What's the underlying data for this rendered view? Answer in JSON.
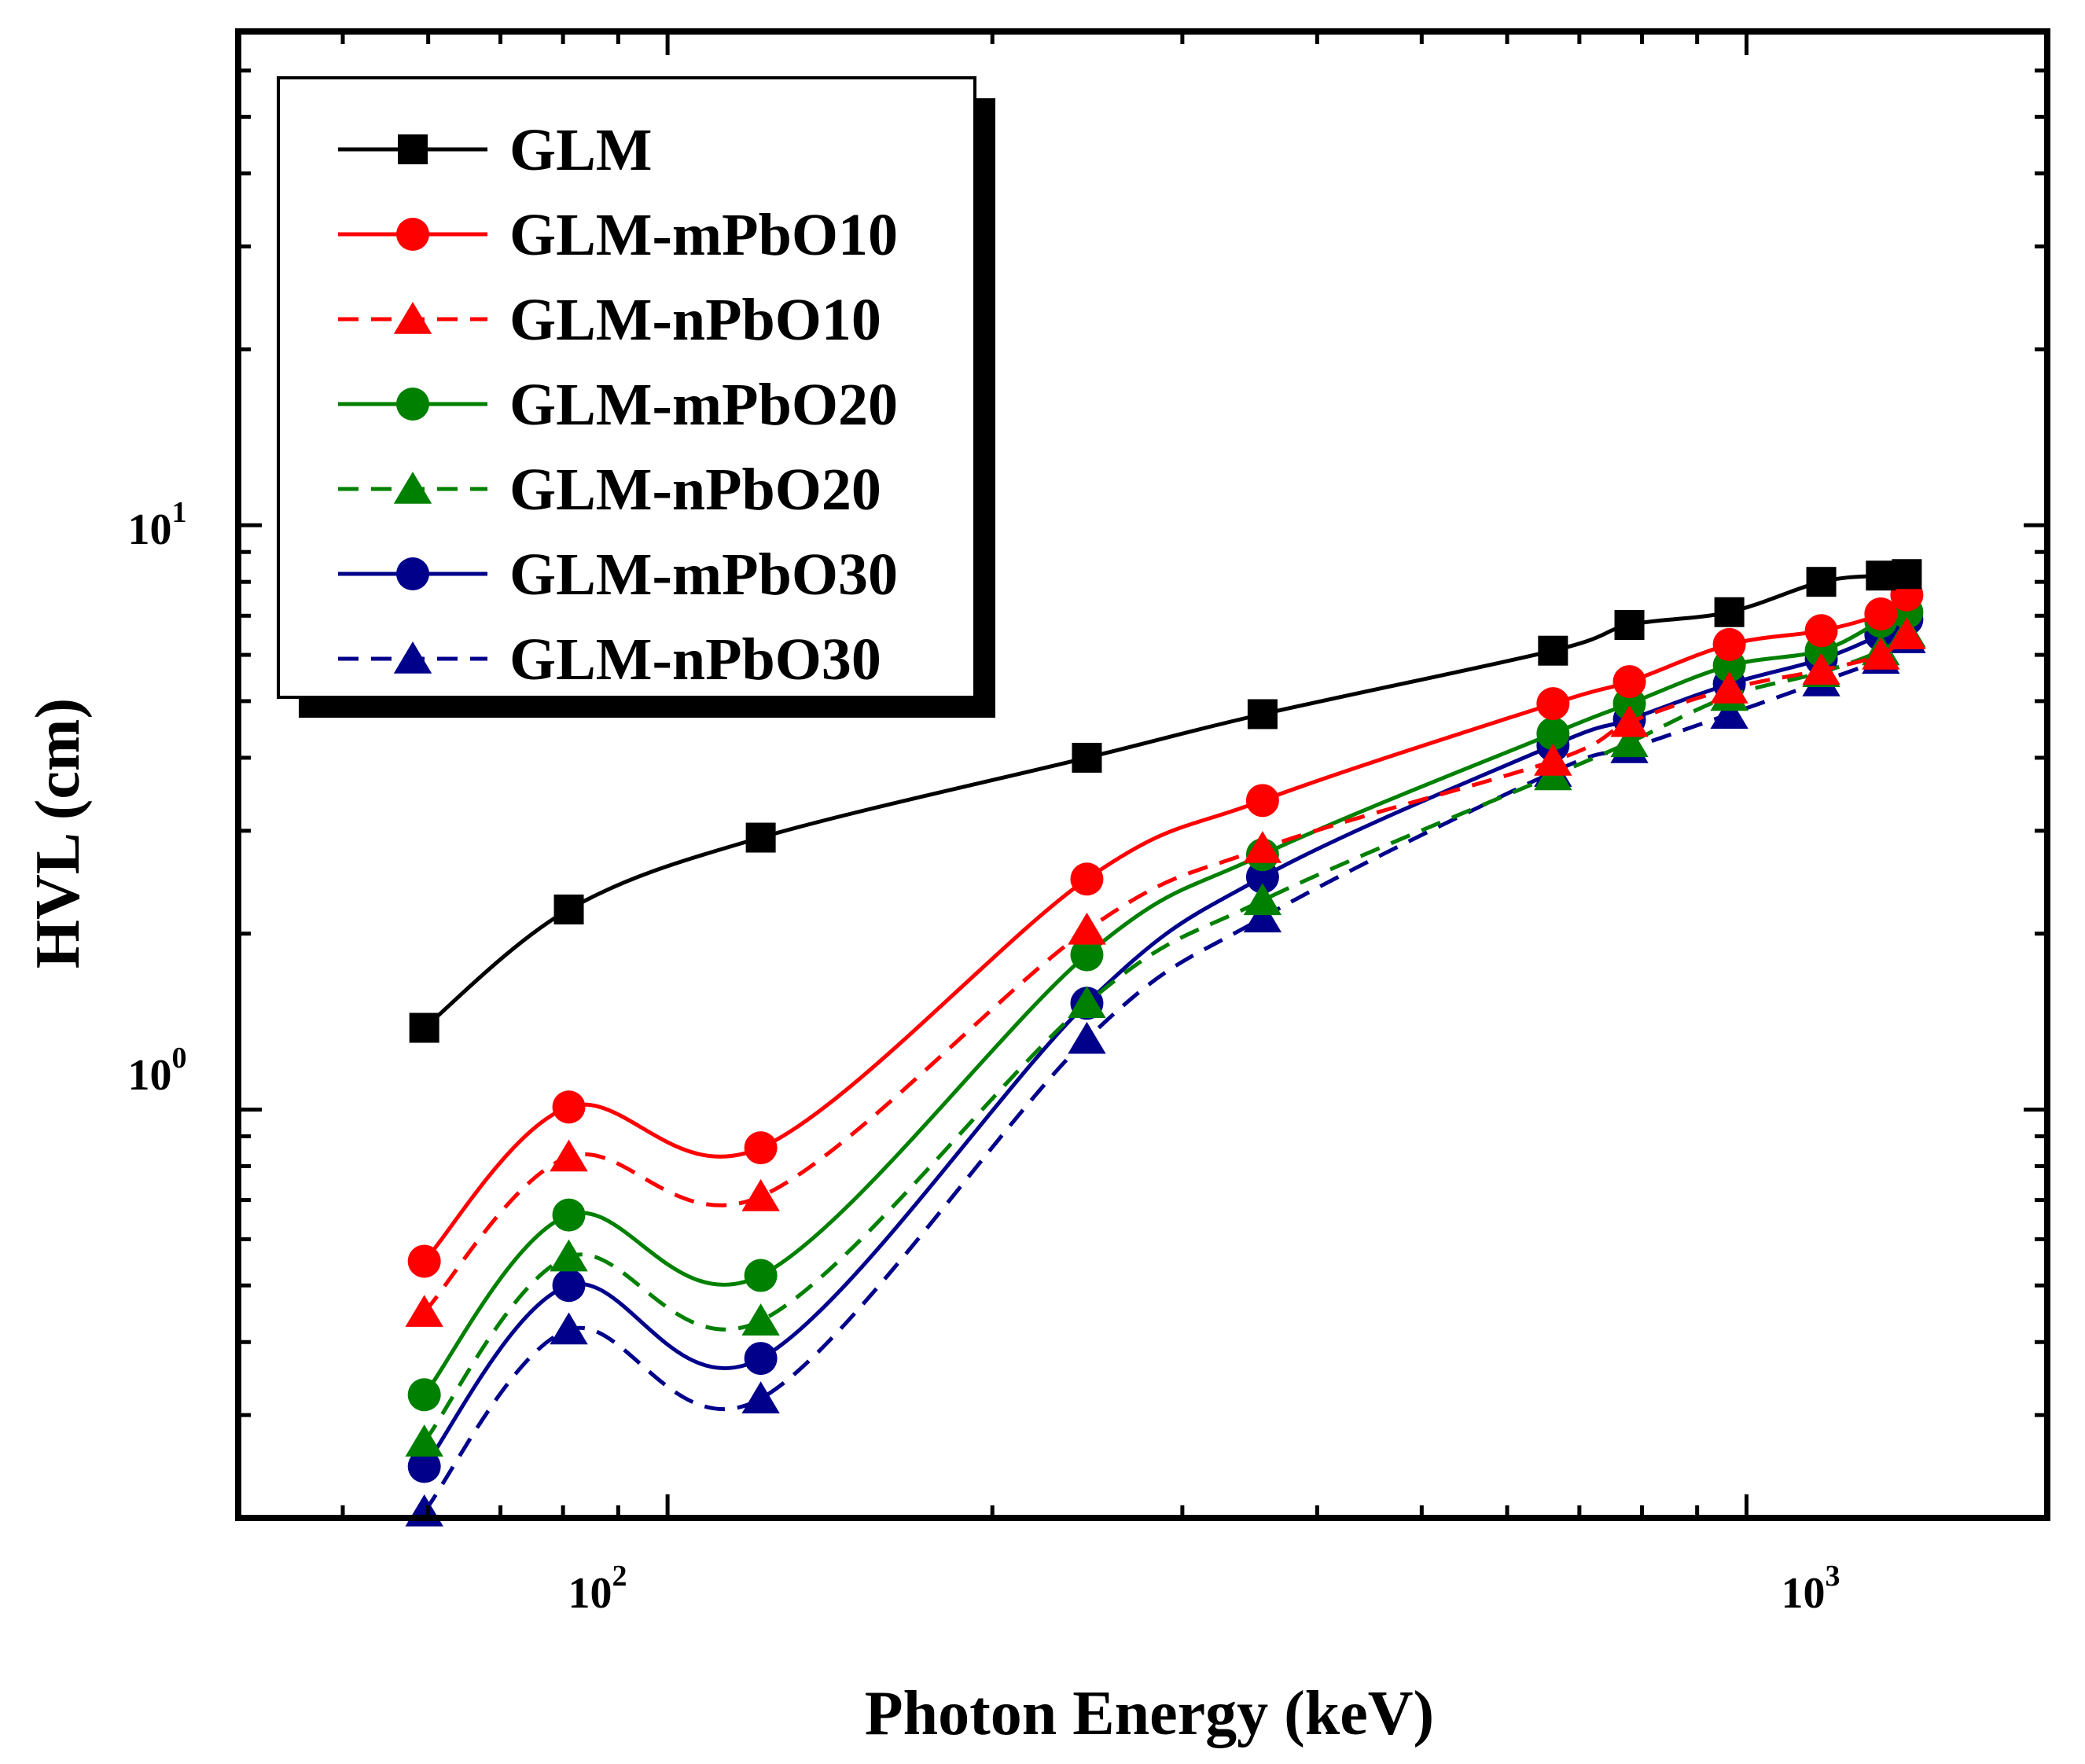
{
  "chart_data": {
    "type": "line",
    "x_scale": "log",
    "y_scale": "log",
    "xlabel": "Photon Energy (keV)",
    "ylabel": "HVL (cm)",
    "xlim": [
      40,
      1900
    ],
    "ylim": [
      0.2,
      70
    ],
    "x_tick_labels": [
      {
        "value": 100,
        "base": "10",
        "exp": "2"
      },
      {
        "value": 1000,
        "base": "10",
        "exp": "3"
      }
    ],
    "y_tick_labels": [
      {
        "value": 1,
        "base": "10",
        "exp": "0"
      },
      {
        "value": 10,
        "base": "10",
        "exp": "1"
      }
    ],
    "x": [
      59.5,
      81,
      122,
      244.7,
      356,
      661.7,
      778.9,
      964,
      1173,
      1332,
      1408
    ],
    "series": [
      {
        "name": "GLM",
        "color": "#000000",
        "dash": "solid",
        "marker": "square",
        "values": [
          1.38,
          2.2,
          2.92,
          4.0,
          4.75,
          6.1,
          6.75,
          7.1,
          8.0,
          8.2,
          8.25
        ]
      },
      {
        "name": "GLM-mPbO10",
        "color": "#ff0000",
        "dash": "solid",
        "marker": "circle",
        "values": [
          0.55,
          1.01,
          0.86,
          2.48,
          3.38,
          4.95,
          5.4,
          6.25,
          6.6,
          7.05,
          7.6
        ]
      },
      {
        "name": "GLM-nPbO10",
        "color": "#ff0000",
        "dash": "dashed",
        "marker": "triangle",
        "values": [
          0.45,
          0.83,
          0.71,
          2.03,
          2.8,
          3.95,
          4.6,
          5.25,
          5.65,
          6.0,
          6.5
        ]
      },
      {
        "name": "GLM-mPbO20",
        "color": "#008000",
        "dash": "solid",
        "marker": "circle",
        "values": [
          0.325,
          0.66,
          0.52,
          1.84,
          2.73,
          4.4,
          4.95,
          5.75,
          6.1,
          6.85,
          7.1
        ]
      },
      {
        "name": "GLM-nPbO20",
        "color": "#008000",
        "dash": "dashed",
        "marker": "triangle",
        "values": [
          0.27,
          0.56,
          0.435,
          1.52,
          2.28,
          3.73,
          4.25,
          5.1,
          5.6,
          6.1,
          6.55
        ]
      },
      {
        "name": "GLM-mPbO30",
        "color": "#00008b",
        "dash": "solid",
        "marker": "circle",
        "values": [
          0.245,
          0.5,
          0.375,
          1.52,
          2.5,
          4.2,
          4.65,
          5.35,
          5.9,
          6.5,
          6.9
        ]
      },
      {
        "name": "GLM-nPbO30",
        "color": "#00008b",
        "dash": "dashed",
        "marker": "triangle",
        "values": [
          0.205,
          0.42,
          0.32,
          1.32,
          2.13,
          3.78,
          4.15,
          4.75,
          5.4,
          5.9,
          6.4
        ]
      }
    ]
  }
}
